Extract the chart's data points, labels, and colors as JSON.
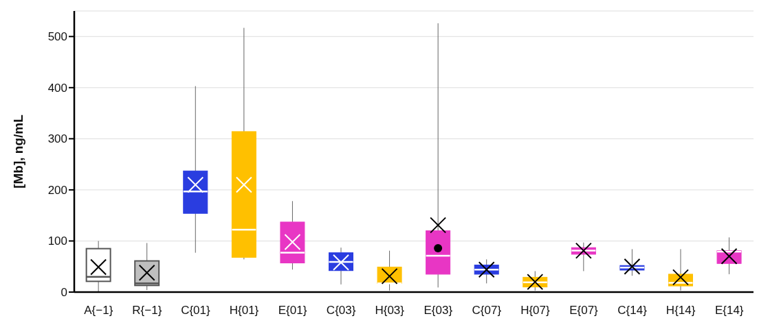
{
  "chart_data": {
    "type": "box",
    "ylabel": "[Mb], ng/mL",
    "ylim": [
      0,
      550
    ],
    "yticks": [
      0,
      100,
      200,
      300,
      400,
      500
    ],
    "grid": "y",
    "categories": [
      "A{−1}",
      "R{−1}",
      "C{01}",
      "H{01}",
      "E{01}",
      "C{03}",
      "H{03}",
      "E{03}",
      "C{07}",
      "H{07}",
      "E{07}",
      "C{14}",
      "H{14}",
      "E{14}"
    ],
    "colors": [
      "#ffffff",
      "#bfbfbf",
      "#2a3de0",
      "#ffc000",
      "#e836c4",
      "#2a3de0",
      "#ffc000",
      "#e836c4",
      "#2a3de0",
      "#ffc000",
      "#e836c4",
      "#2a3de0",
      "#ffc000",
      "#e836c4"
    ],
    "boxes": [
      {
        "low": 1,
        "q1": 21,
        "median": 30,
        "q3": 85,
        "high": 100,
        "mean": 49
      },
      {
        "low": 4,
        "q1": 13,
        "median": 17,
        "q3": 61,
        "high": 96,
        "mean": 38
      },
      {
        "low": 77,
        "q1": 154,
        "median": 197,
        "q3": 237,
        "high": 403,
        "mean": 210
      },
      {
        "low": 64,
        "q1": 68,
        "median": 122,
        "q3": 314,
        "high": 517,
        "mean": 210
      },
      {
        "low": 44,
        "q1": 57,
        "median": 77,
        "q3": 137,
        "high": 178,
        "mean": 98
      },
      {
        "low": 15,
        "q1": 42,
        "median": 59,
        "q3": 77,
        "high": 87,
        "mean": 58
      },
      {
        "low": 3,
        "q1": 17,
        "median": 17,
        "q3": 49,
        "high": 81,
        "mean": 31
      },
      {
        "low": 9,
        "q1": 35,
        "median": 71,
        "q3": 120,
        "high": 526,
        "mean": 131,
        "outliers": [
          86
        ]
      },
      {
        "low": 17,
        "q1": 35,
        "median": 44,
        "q3": 53,
        "high": 64,
        "mean": 44
      },
      {
        "low": 3,
        "q1": 10,
        "median": 19,
        "q3": 29,
        "high": 41,
        "mean": 20
      },
      {
        "low": 41,
        "q1": 74,
        "median": 81,
        "q3": 87,
        "high": 97,
        "mean": 81
      },
      {
        "low": 32,
        "q1": 43,
        "median": 48,
        "q3": 52,
        "high": 84,
        "mean": 50
      },
      {
        "low": 3,
        "q1": 12,
        "median": 18,
        "q3": 35,
        "high": 84,
        "mean": 29
      },
      {
        "low": 35,
        "q1": 56,
        "median": 79,
        "q3": 81,
        "high": 107,
        "mean": 70
      }
    ],
    "marker": "cross"
  }
}
